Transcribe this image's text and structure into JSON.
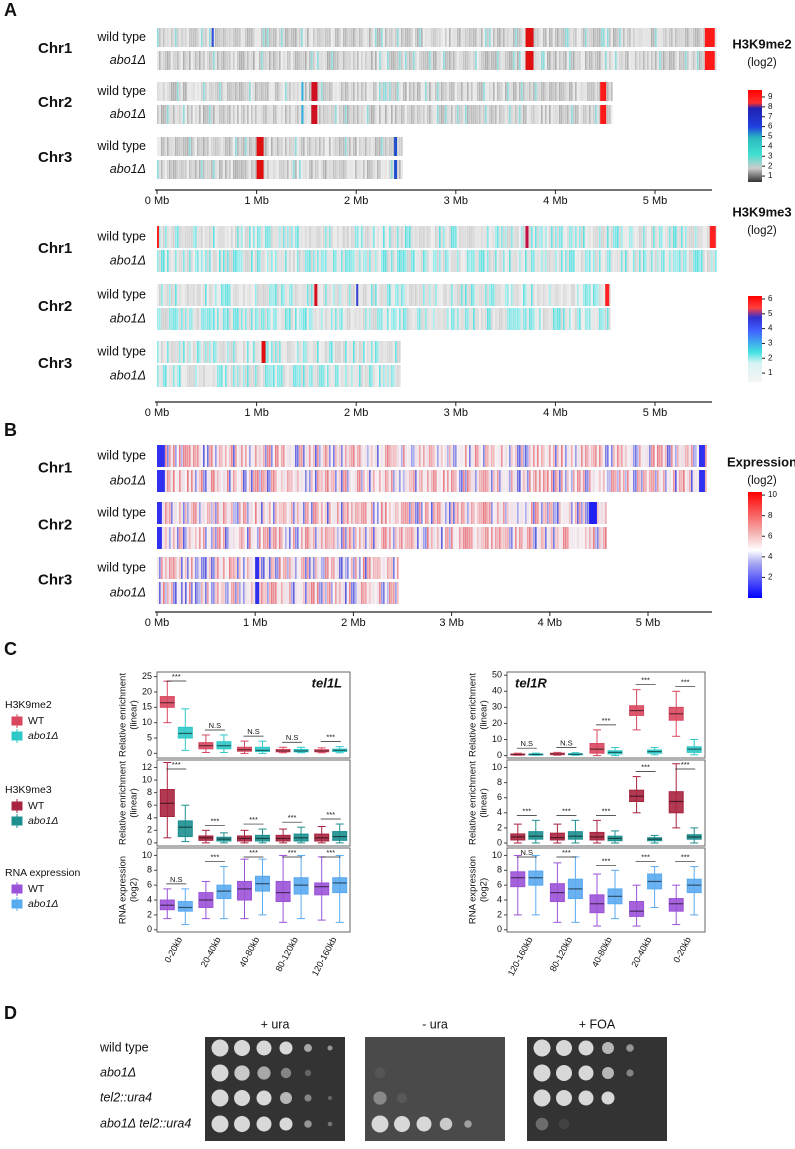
{
  "panels": {
    "A": {
      "label": "A",
      "h3k9me2": {
        "chromosomes": [
          {
            "name": "Chr1",
            "tracks": [
              "wild type",
              "abo1Δ"
            ]
          },
          {
            "name": "Chr2",
            "tracks": [
              "wild type",
              "abo1Δ"
            ]
          },
          {
            "name": "Chr3",
            "tracks": [
              "wild type",
              "abo1Δ"
            ]
          }
        ],
        "axis": [
          "0 Mb",
          "1 Mb",
          "2 Mb",
          "3 Mb",
          "4 Mb",
          "5 Mb"
        ],
        "colorbar": {
          "title": "H3K9me2",
          "unit": "(log2)",
          "lim": [
            0.4,
            9.7
          ],
          "ticks": [
            1,
            2,
            3,
            4,
            5,
            6,
            7,
            8,
            9
          ]
        }
      },
      "h3k9me3": {
        "chromosomes": [
          {
            "name": "Chr1",
            "tracks": [
              "wild type",
              "abo1Δ"
            ]
          },
          {
            "name": "Chr2",
            "tracks": [
              "wild type",
              "abo1Δ"
            ]
          },
          {
            "name": "Chr3",
            "tracks": [
              "wild type",
              "abo1Δ"
            ]
          }
        ],
        "axis": [
          "0 Mb",
          "1 Mb",
          "2 Mb",
          "3 Mb",
          "4 Mb",
          "5 Mb"
        ],
        "colorbar": {
          "title": "H3K9me3",
          "unit": "(log2)",
          "lim": [
            0.4,
            6.2
          ],
          "ticks": [
            1,
            2,
            3,
            4,
            5,
            6
          ]
        }
      }
    },
    "B": {
      "label": "B",
      "expression": {
        "chromosomes": [
          {
            "name": "Chr1",
            "tracks": [
              "wild type",
              "abo1Δ"
            ]
          },
          {
            "name": "Chr2",
            "tracks": [
              "wild type",
              "abo1Δ"
            ]
          },
          {
            "name": "Chr3",
            "tracks": [
              "wild type",
              "abo1Δ"
            ]
          }
        ],
        "axis": [
          "0 Mb",
          "1 Mb",
          "2 Mb",
          "3 Mb",
          "4 Mb",
          "5 Mb"
        ],
        "colorbar": {
          "title": "Expression",
          "unit": "(log2)",
          "lim": [
            0,
            10.3
          ],
          "ticks": [
            2,
            4,
            6,
            8,
            10
          ]
        }
      }
    },
    "C": {
      "label": "C",
      "legends": [
        {
          "title": "H3K9me2",
          "entries": [
            "WT",
            "abo1Δ"
          ]
        },
        {
          "title": "H3K9me3",
          "entries": [
            "WT",
            "abo1Δ"
          ]
        },
        {
          "title": "RNA expression",
          "entries": [
            "WT",
            "abo1Δ"
          ]
        }
      ]
    },
    "D": {
      "label": "D",
      "conditions": [
        "+ ura",
        "- ura",
        "+ FOA"
      ],
      "strains": [
        "wild type",
        "abo1Δ",
        "tel2::ura4",
        "abo1Δ tel2::ura4"
      ]
    }
  },
  "chart_data": [
    {
      "type": "box",
      "title": "tel1L",
      "ylabel": [
        "Relative enrichment",
        "(linear)"
      ],
      "categories": [
        null,
        null,
        null,
        null,
        null
      ],
      "ylim": [
        -1.5,
        26.5
      ],
      "yticks": [
        0,
        5,
        10,
        15,
        20,
        25
      ],
      "series": [
        {
          "color": "#d9475f",
          "values": [
            [
              10,
              15,
              16.5,
              18.5,
              23.5
            ],
            [
              0.3,
              1.5,
              2.5,
              3.5,
              6
            ],
            [
              0,
              0.7,
              1.2,
              2,
              4
            ],
            [
              0.2,
              0.5,
              0.8,
              1.3,
              2
            ],
            [
              0.2,
              0.5,
              0.8,
              1.2,
              1.8
            ]
          ]
        },
        {
          "color": "#2ec8c8",
          "values": [
            [
              1,
              5,
              6.5,
              8.5,
              14.5
            ],
            [
              0.3,
              1.5,
              2.5,
              3.8,
              6
            ],
            [
              0,
              0.6,
              1,
              2,
              4
            ],
            [
              0.2,
              0.5,
              0.8,
              1.3,
              2
            ],
            [
              0.2,
              0.6,
              1,
              1.4,
              2.2
            ]
          ]
        }
      ],
      "annotations": [
        "***",
        "N.S",
        "N.S",
        "N.S",
        "***"
      ]
    },
    {
      "type": "box",
      "title": "tel1R",
      "ylabel": [
        "Relative enrichment",
        "(linear)"
      ],
      "categories": [
        null,
        null,
        null,
        null,
        null
      ],
      "ylim": [
        -1.5,
        52
      ],
      "yticks": [
        0,
        10,
        20,
        30,
        40,
        50
      ],
      "series": [
        {
          "color": "#d9475f",
          "values": [
            [
              0.2,
              0.5,
              0.7,
              1,
              1.5
            ],
            [
              0.2,
              0.6,
              1,
              1.5,
              2
            ],
            [
              0,
              1.5,
              4,
              7.5,
              16
            ],
            [
              16,
              25,
              28,
              31,
              41
            ],
            [
              12,
              22,
              26,
              30,
              40
            ]
          ]
        },
        {
          "color": "#2ec8c8",
          "values": [
            [
              0.2,
              0.5,
              0.7,
              1,
              1.5
            ],
            [
              0.2,
              0.5,
              0.8,
              1.2,
              1.8
            ],
            [
              0,
              1,
              2,
              3,
              5
            ],
            [
              0.5,
              1.5,
              2.5,
              3.5,
              5
            ],
            [
              0.5,
              2,
              4,
              5.5,
              10
            ]
          ]
        }
      ],
      "annotations": [
        "N.S",
        "N.S",
        "***",
        "***",
        "***"
      ]
    },
    {
      "type": "box",
      "ylabel": [
        "Relative enrichment",
        "(linear)"
      ],
      "categories": [
        null,
        null,
        null,
        null,
        null
      ],
      "ylim": [
        -0.5,
        13.2
      ],
      "yticks": [
        0,
        2,
        4,
        6,
        8,
        10,
        12
      ],
      "series": [
        {
          "color": "#a8233f",
          "values": [
            [
              0.8,
              4.2,
              6.3,
              8.5,
              12.8
            ],
            [
              0,
              0.4,
              0.8,
              1.1,
              2
            ],
            [
              0,
              0.3,
              0.7,
              1.1,
              2
            ],
            [
              0,
              0.3,
              0.7,
              1.2,
              2.2
            ],
            [
              0,
              0.3,
              0.8,
              1.4,
              2.6
            ]
          ]
        },
        {
          "color": "#1c8f8f",
          "values": [
            [
              0.2,
              1,
              2.5,
              3.5,
              6
            ],
            [
              0,
              0.3,
              0.6,
              0.9,
              1.6
            ],
            [
              0,
              0.3,
              0.7,
              1.2,
              2.2
            ],
            [
              0,
              0.3,
              0.8,
              1.4,
              2.5
            ],
            [
              0,
              0.4,
              1,
              1.8,
              3
            ]
          ]
        }
      ],
      "annotations": [
        "***",
        "***",
        "***",
        "***",
        "***"
      ]
    },
    {
      "type": "box",
      "ylabel": [
        "Relative enrichment",
        "(linear)"
      ],
      "categories": [
        null,
        null,
        null,
        null,
        null
      ],
      "ylim": [
        -0.4,
        11
      ],
      "yticks": [
        0,
        2,
        4,
        6,
        8,
        10
      ],
      "series": [
        {
          "color": "#a8233f",
          "values": [
            [
              0,
              0.4,
              0.8,
              1.2,
              2.5
            ],
            [
              0,
              0.4,
              0.7,
              1.3,
              2.5
            ],
            [
              0,
              0.4,
              0.8,
              1.4,
              3
            ],
            [
              4,
              5.5,
              6.2,
              7,
              8.8
            ],
            [
              2,
              4,
              5.5,
              6.8,
              10.5
            ]
          ]
        },
        {
          "color": "#1c8f8f",
          "values": [
            [
              0,
              0.5,
              0.9,
              1.5,
              3
            ],
            [
              0,
              0.5,
              0.9,
              1.5,
              3
            ],
            [
              0,
              0.3,
              0.6,
              0.9,
              1.6
            ],
            [
              0,
              0.3,
              0.5,
              0.7,
              1
            ],
            [
              0,
              0.5,
              0.8,
              1.1,
              2
            ]
          ]
        }
      ],
      "annotations": [
        "***",
        "***",
        "***",
        "***",
        "***"
      ]
    },
    {
      "type": "box",
      "ylabel": [
        "RNA expression",
        "(log2)"
      ],
      "categories": [
        "0-20kb",
        "20-40kb",
        "40-80kb",
        "80-120kb",
        "120-160kb"
      ],
      "ylim": [
        -0.3,
        11
      ],
      "yticks": [
        0,
        2,
        4,
        6,
        8,
        10
      ],
      "series": [
        {
          "color": "#9b52d8",
          "values": [
            [
              1.5,
              2.7,
              3.3,
              4,
              5.5
            ],
            [
              1.5,
              3,
              4,
              5,
              6.5
            ],
            [
              1.5,
              4,
              5.5,
              6.5,
              9.5
            ],
            [
              1,
              3.8,
              5,
              6.5,
              10
            ],
            [
              1.3,
              4.7,
              5.8,
              6.3,
              9.8
            ]
          ]
        },
        {
          "color": "#5aaaf0",
          "values": [
            [
              0.7,
              2.5,
              3,
              3.8,
              5.5
            ],
            [
              1.5,
              4.2,
              5.2,
              6,
              8.5
            ],
            [
              2,
              5.2,
              6.2,
              7.2,
              9.5
            ],
            [
              1.5,
              4.8,
              6,
              7,
              10
            ],
            [
              1,
              5,
              6.3,
              7,
              10
            ]
          ]
        }
      ],
      "annotations": [
        "N.S",
        "***",
        "***",
        "***",
        "***"
      ]
    },
    {
      "type": "box",
      "ylabel": [
        "RNA expression",
        "(log2)"
      ],
      "categories": [
        "120-160kb",
        "80-120kb",
        "40-80kb",
        "20-40kb",
        "0-20kb"
      ],
      "ylim": [
        -0.3,
        11
      ],
      "yticks": [
        0,
        2,
        4,
        6,
        8,
        10
      ],
      "series": [
        {
          "color": "#9b52d8",
          "values": [
            [
              2,
              5.8,
              7,
              7.8,
              10
            ],
            [
              1,
              3.8,
              5,
              6.2,
              9
            ],
            [
              0.5,
              2.3,
              3.5,
              4.7,
              7.5
            ],
            [
              0.5,
              1.8,
              2.5,
              3.8,
              6
            ],
            [
              0.7,
              2.5,
              3.5,
              4.2,
              6
            ]
          ]
        },
        {
          "color": "#5aaaf0",
          "values": [
            [
              2,
              6,
              7,
              7.9,
              10
            ],
            [
              1,
              4.2,
              5.5,
              6.8,
              9.8
            ],
            [
              1.5,
              3.5,
              4.5,
              5.5,
              8
            ],
            [
              3,
              5.5,
              6.5,
              7.5,
              8.5
            ],
            [
              2,
              5,
              6,
              6.8,
              8.5
            ]
          ]
        }
      ],
      "annotations": [
        "N.S",
        "***",
        "***",
        "***",
        "***"
      ]
    }
  ]
}
